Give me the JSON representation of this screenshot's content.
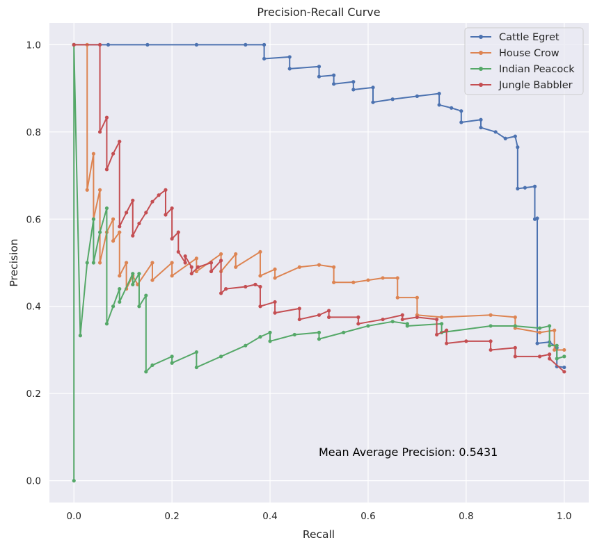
{
  "chart_data": {
    "type": "line",
    "title": "Precision-Recall Curve",
    "xlabel": "Recall",
    "ylabel": "Precision",
    "xlim": [
      -0.05,
      1.05
    ],
    "ylim": [
      -0.05,
      1.05
    ],
    "xticks": [
      0.0,
      0.2,
      0.4,
      0.6,
      0.8,
      1.0
    ],
    "xtick_labels": [
      "0.0",
      "0.2",
      "0.4",
      "0.6",
      "0.8",
      "1.0"
    ],
    "yticks": [
      0.0,
      0.2,
      0.4,
      0.6,
      0.8,
      1.0
    ],
    "ytick_labels": [
      "0.0",
      "0.2",
      "0.4",
      "0.6",
      "0.8",
      "1.0"
    ],
    "grid": true,
    "legend_position": "top-right",
    "annotation": "Mean Average Precision: 0.5431",
    "series": [
      {
        "name": "Cattle Egret",
        "color": "#4c72b0",
        "x": [
          0.0,
          0.07,
          0.15,
          0.25,
          0.35,
          0.388,
          0.388,
          0.44,
          0.44,
          0.5,
          0.5,
          0.53,
          0.53,
          0.57,
          0.57,
          0.61,
          0.61,
          0.65,
          0.7,
          0.745,
          0.745,
          0.77,
          0.79,
          0.79,
          0.83,
          0.83,
          0.86,
          0.88,
          0.9,
          0.905,
          0.905,
          0.92,
          0.94,
          0.94,
          0.945,
          0.945,
          0.97,
          0.985,
          0.985,
          1.0
        ],
        "y": [
          1.0,
          1.0,
          1.0,
          1.0,
          1.0,
          1.0,
          0.968,
          0.972,
          0.945,
          0.95,
          0.927,
          0.93,
          0.91,
          0.915,
          0.897,
          0.902,
          0.868,
          0.875,
          0.882,
          0.888,
          0.862,
          0.855,
          0.848,
          0.822,
          0.828,
          0.81,
          0.8,
          0.785,
          0.79,
          0.765,
          0.67,
          0.672,
          0.675,
          0.6,
          0.602,
          0.315,
          0.318,
          0.305,
          0.262,
          0.26
        ]
      },
      {
        "name": "House Crow",
        "color": "#dd8452",
        "x": [
          0.0,
          0.027,
          0.027,
          0.04,
          0.04,
          0.053,
          0.053,
          0.067,
          0.08,
          0.08,
          0.093,
          0.093,
          0.107,
          0.107,
          0.12,
          0.13,
          0.16,
          0.16,
          0.2,
          0.2,
          0.25,
          0.25,
          0.3,
          0.3,
          0.33,
          0.33,
          0.38,
          0.38,
          0.41,
          0.41,
          0.46,
          0.5,
          0.53,
          0.53,
          0.57,
          0.6,
          0.63,
          0.66,
          0.66,
          0.7,
          0.7,
          0.75,
          0.85,
          0.9,
          0.9,
          0.95,
          0.98,
          0.98,
          1.0
        ],
        "y": [
          1.0,
          1.0,
          0.667,
          0.75,
          0.6,
          0.667,
          0.5,
          0.57,
          0.6,
          0.55,
          0.57,
          0.47,
          0.5,
          0.44,
          0.47,
          0.45,
          0.5,
          0.46,
          0.5,
          0.47,
          0.51,
          0.48,
          0.52,
          0.48,
          0.52,
          0.49,
          0.525,
          0.47,
          0.485,
          0.465,
          0.49,
          0.495,
          0.49,
          0.455,
          0.455,
          0.46,
          0.465,
          0.465,
          0.42,
          0.42,
          0.38,
          0.375,
          0.38,
          0.375,
          0.35,
          0.34,
          0.345,
          0.3,
          0.3
        ]
      },
      {
        "name": "Indian Peacock",
        "color": "#55a868",
        "x": [
          0.0,
          0.0,
          0.013,
          0.027,
          0.04,
          0.04,
          0.053,
          0.067,
          0.067,
          0.08,
          0.093,
          0.093,
          0.12,
          0.12,
          0.133,
          0.133,
          0.147,
          0.147,
          0.16,
          0.2,
          0.2,
          0.25,
          0.25,
          0.3,
          0.35,
          0.38,
          0.4,
          0.4,
          0.45,
          0.5,
          0.5,
          0.55,
          0.6,
          0.65,
          0.68,
          0.68,
          0.75,
          0.75,
          0.85,
          0.9,
          0.95,
          0.97,
          0.97,
          0.985,
          0.985,
          1.0
        ],
        "y": [
          0.0,
          1.0,
          0.333,
          0.5,
          0.6,
          0.5,
          0.57,
          0.625,
          0.36,
          0.4,
          0.44,
          0.41,
          0.475,
          0.45,
          0.475,
          0.4,
          0.425,
          0.25,
          0.265,
          0.285,
          0.27,
          0.295,
          0.26,
          0.285,
          0.31,
          0.33,
          0.34,
          0.32,
          0.335,
          0.34,
          0.325,
          0.34,
          0.355,
          0.365,
          0.36,
          0.355,
          0.36,
          0.34,
          0.355,
          0.355,
          0.35,
          0.355,
          0.31,
          0.31,
          0.28,
          0.285
        ]
      },
      {
        "name": "Jungle Babbler",
        "color": "#c44e52",
        "x": [
          0.0,
          0.053,
          0.053,
          0.067,
          0.067,
          0.08,
          0.093,
          0.093,
          0.107,
          0.12,
          0.12,
          0.133,
          0.147,
          0.16,
          0.173,
          0.187,
          0.187,
          0.2,
          0.2,
          0.213,
          0.213,
          0.227,
          0.227,
          0.24,
          0.24,
          0.253,
          0.28,
          0.28,
          0.3,
          0.3,
          0.31,
          0.35,
          0.37,
          0.38,
          0.38,
          0.41,
          0.41,
          0.46,
          0.46,
          0.5,
          0.52,
          0.52,
          0.58,
          0.58,
          0.63,
          0.67,
          0.67,
          0.7,
          0.74,
          0.74,
          0.76,
          0.76,
          0.8,
          0.85,
          0.85,
          0.9,
          0.9,
          0.95,
          0.97,
          0.97,
          1.0
        ],
        "y": [
          1.0,
          1.0,
          0.8,
          0.833,
          0.714,
          0.75,
          0.778,
          0.583,
          0.615,
          0.643,
          0.562,
          0.59,
          0.615,
          0.64,
          0.655,
          0.667,
          0.61,
          0.625,
          0.555,
          0.57,
          0.525,
          0.5,
          0.515,
          0.49,
          0.475,
          0.49,
          0.5,
          0.48,
          0.505,
          0.43,
          0.44,
          0.445,
          0.45,
          0.445,
          0.4,
          0.41,
          0.385,
          0.395,
          0.37,
          0.38,
          0.39,
          0.375,
          0.375,
          0.36,
          0.37,
          0.38,
          0.37,
          0.375,
          0.37,
          0.335,
          0.345,
          0.315,
          0.32,
          0.32,
          0.3,
          0.305,
          0.285,
          0.285,
          0.29,
          0.28,
          0.25
        ]
      }
    ]
  }
}
